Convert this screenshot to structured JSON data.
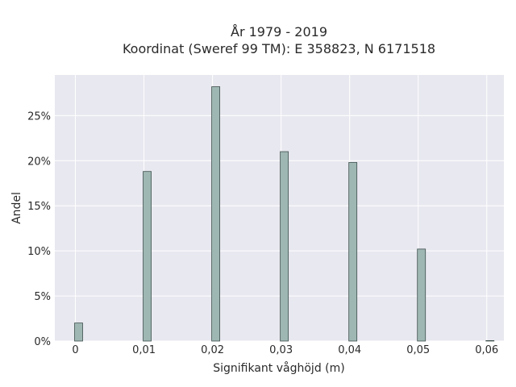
{
  "chart_data": {
    "type": "bar",
    "title_lines": [
      "År 1979 - 2019",
      "Koordinat (Sweref 99 TM): E 358823, N 6171518"
    ],
    "xlabel": "Signifikant våghöjd (m)",
    "ylabel": "Andel",
    "x": [
      0,
      0.01,
      0.02,
      0.03,
      0.04,
      0.05,
      0.06
    ],
    "values": [
      0.02,
      0.188,
      0.282,
      0.21,
      0.198,
      0.102,
      0.0005
    ],
    "xlim": [
      -0.003,
      0.0625
    ],
    "ylim": [
      0,
      0.295
    ],
    "x_ticks": [
      0,
      0.01,
      0.02,
      0.03,
      0.04,
      0.05,
      0.06
    ],
    "x_tick_labels": [
      "0",
      "0,01",
      "0,02",
      "0,03",
      "0,04",
      "0,05",
      "0,06"
    ],
    "y_ticks": [
      0,
      0.05,
      0.1,
      0.15,
      0.2,
      0.25
    ],
    "y_tick_labels": [
      "0%",
      "5%",
      "10%",
      "15%",
      "20%",
      "25%"
    ],
    "grid": true,
    "colors": {
      "plot_background": "#e8e8f0",
      "grid": "#ffffff",
      "bar_fill": "#9fb7b3",
      "bar_stroke": "#3d4f4c"
    }
  }
}
